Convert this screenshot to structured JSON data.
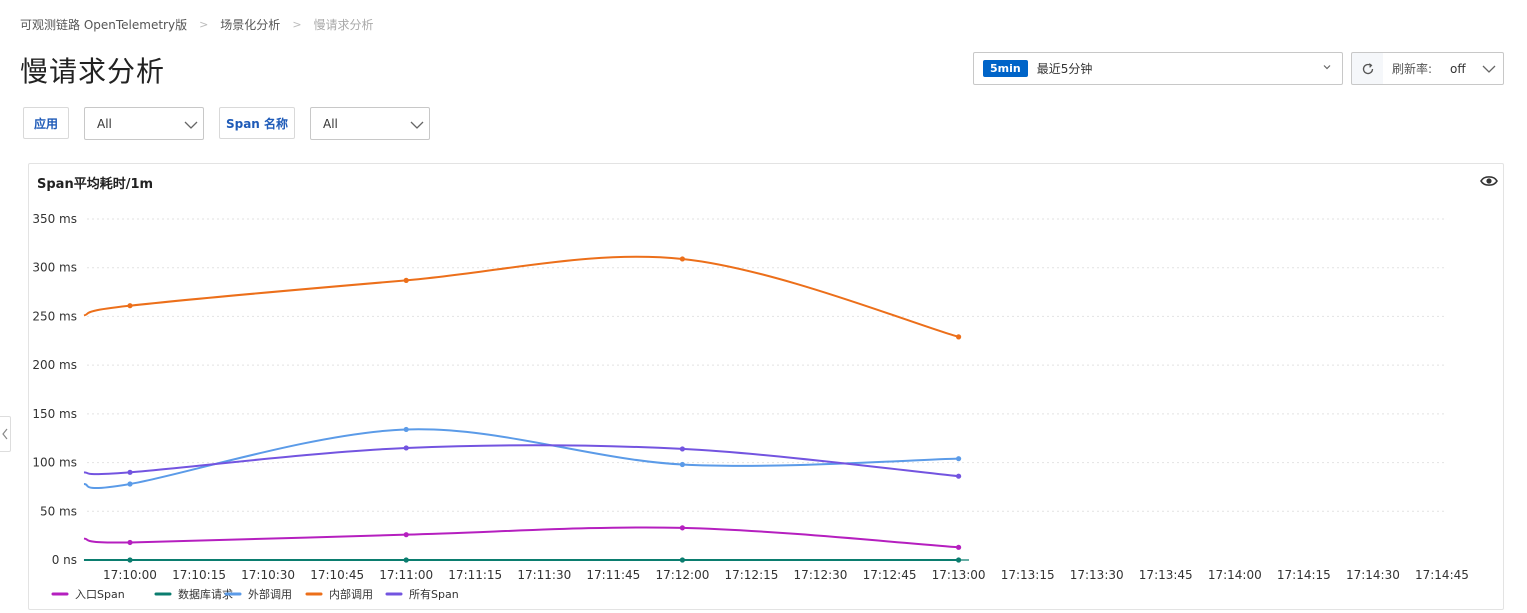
{
  "breadcrumb": {
    "items": [
      "可观测链路 OpenTelemetry版",
      "场景化分析",
      "慢请求分析"
    ],
    "separator": ">"
  },
  "page": {
    "title": "慢请求分析"
  },
  "time_picker": {
    "badge": "5min",
    "label": "最近5分钟"
  },
  "refresh": {
    "label": "刷新率:",
    "value": "off"
  },
  "filters": {
    "app_label": "应用",
    "app_value": "All",
    "span_label": "Span 名称",
    "span_value": "All"
  },
  "chart": {
    "title": "Span平均耗时/1m"
  },
  "chart_data": {
    "type": "line",
    "title": "Span平均耗时/1m",
    "y_unit": "ms",
    "y_ticks": [
      "0 ns",
      "50 ms",
      "100 ms",
      "150 ms",
      "200 ms",
      "250 ms",
      "300 ms",
      "350 ms"
    ],
    "ylim": [
      0,
      350
    ],
    "x_ticks": [
      "17:10:00",
      "17:10:15",
      "17:10:30",
      "17:10:45",
      "17:11:00",
      "17:11:15",
      "17:11:30",
      "17:11:45",
      "17:12:00",
      "17:12:15",
      "17:12:30",
      "17:12:45",
      "17:13:00",
      "17:13:15",
      "17:13:30",
      "17:13:45",
      "17:14:00",
      "17:14:15",
      "17:14:30",
      "17:14:45"
    ],
    "x_points": [
      "17:09:50",
      "17:10:00",
      "17:11:00",
      "17:12:00",
      "17:13:00"
    ],
    "grid": true,
    "legend_position": "bottom-left",
    "series": [
      {
        "name": "入口Span",
        "color": "#b51fbf",
        "values": [
          22,
          18,
          26,
          33,
          13
        ]
      },
      {
        "name": "数据库请求",
        "color": "#0b7d6f",
        "values": [
          0,
          0,
          0,
          0,
          0
        ]
      },
      {
        "name": "外部调用",
        "color": "#5b9be8",
        "values": [
          78,
          78,
          134,
          98,
          104
        ]
      },
      {
        "name": "内部调用",
        "color": "#ec6f1a",
        "values": [
          251,
          261,
          287,
          309,
          229
        ]
      },
      {
        "name": "所有Span",
        "color": "#7354e0",
        "values": [
          90,
          90,
          115,
          114,
          86
        ]
      }
    ]
  }
}
